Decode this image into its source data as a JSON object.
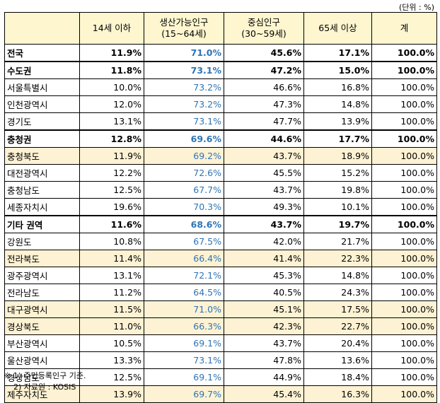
{
  "unit_label": "(단위 : %)",
  "columns": [
    "",
    "14세 이하",
    "생산가능인구\n(15~64세)",
    "중심인구\n(30~59세)",
    "65세 이상",
    "계"
  ],
  "rows": [
    {
      "name": "전국",
      "under14": "11.9%",
      "working": "71.0%",
      "core": "45.6%",
      "over65": "17.1%",
      "total": "100.0%",
      "bold": true,
      "highlight": false,
      "separator": false
    },
    {
      "name": "수도권",
      "under14": "11.8%",
      "working": "73.1%",
      "core": "47.2%",
      "over65": "15.0%",
      "total": "100.0%",
      "bold": true,
      "highlight": false,
      "separator": true
    },
    {
      "name": "서울특별시",
      "under14": "10.0%",
      "working": "73.2%",
      "core": "46.6%",
      "over65": "16.8%",
      "total": "100.0%",
      "bold": false,
      "highlight": false,
      "separator": false
    },
    {
      "name": "인천광역시",
      "under14": "12.0%",
      "working": "73.2%",
      "core": "47.3%",
      "over65": "14.8%",
      "total": "100.0%",
      "bold": false,
      "highlight": false,
      "separator": false
    },
    {
      "name": "경기도",
      "under14": "13.1%",
      "working": "73.1%",
      "core": "47.7%",
      "over65": "13.9%",
      "total": "100.0%",
      "bold": false,
      "highlight": false,
      "separator": false
    },
    {
      "name": "충청권",
      "under14": "12.8%",
      "working": "69.6%",
      "core": "44.6%",
      "over65": "17.7%",
      "total": "100.0%",
      "bold": true,
      "highlight": false,
      "separator": true
    },
    {
      "name": "충청북도",
      "under14": "11.9%",
      "working": "69.2%",
      "core": "43.7%",
      "over65": "18.9%",
      "total": "100.0%",
      "bold": false,
      "highlight": true,
      "separator": false
    },
    {
      "name": "대전광역시",
      "under14": "12.2%",
      "working": "72.6%",
      "core": "45.5%",
      "over65": "15.2%",
      "total": "100.0%",
      "bold": false,
      "highlight": false,
      "separator": false
    },
    {
      "name": "충청남도",
      "under14": "12.5%",
      "working": "67.7%",
      "core": "43.7%",
      "over65": "19.8%",
      "total": "100.0%",
      "bold": false,
      "highlight": false,
      "separator": false
    },
    {
      "name": "세종자치시",
      "under14": "19.6%",
      "working": "70.3%",
      "core": "49.3%",
      "over65": "10.1%",
      "total": "100.0%",
      "bold": false,
      "highlight": false,
      "separator": false
    },
    {
      "name": "기타 권역",
      "under14": "11.6%",
      "working": "68.6%",
      "core": "43.7%",
      "over65": "19.7%",
      "total": "100.0%",
      "bold": true,
      "highlight": false,
      "separator": true
    },
    {
      "name": "강원도",
      "under14": "10.8%",
      "working": "67.5%",
      "core": "42.0%",
      "over65": "21.7%",
      "total": "100.0%",
      "bold": false,
      "highlight": false,
      "separator": false
    },
    {
      "name": "전라북도",
      "under14": "11.4%",
      "working": "66.4%",
      "core": "41.4%",
      "over65": "22.3%",
      "total": "100.0%",
      "bold": false,
      "highlight": true,
      "separator": false
    },
    {
      "name": "광주광역시",
      "under14": "13.1%",
      "working": "72.1%",
      "core": "45.3%",
      "over65": "14.8%",
      "total": "100.0%",
      "bold": false,
      "highlight": false,
      "separator": false
    },
    {
      "name": "전라남도",
      "under14": "11.2%",
      "working": "64.5%",
      "core": "40.5%",
      "over65": "24.3%",
      "total": "100.0%",
      "bold": false,
      "highlight": false,
      "separator": false
    },
    {
      "name": "대구광역시",
      "under14": "11.5%",
      "working": "71.0%",
      "core": "45.1%",
      "over65": "17.5%",
      "total": "100.0%",
      "bold": false,
      "highlight": true,
      "separator": false
    },
    {
      "name": "경상북도",
      "under14": "11.0%",
      "working": "66.3%",
      "core": "42.3%",
      "over65": "22.7%",
      "total": "100.0%",
      "bold": false,
      "highlight": true,
      "separator": false
    },
    {
      "name": "부산광역시",
      "under14": "10.5%",
      "working": "69.1%",
      "core": "43.7%",
      "over65": "20.4%",
      "total": "100.0%",
      "bold": false,
      "highlight": false,
      "separator": false
    },
    {
      "name": "울산광역시",
      "under14": "13.3%",
      "working": "73.1%",
      "core": "47.8%",
      "over65": "13.6%",
      "total": "100.0%",
      "bold": false,
      "highlight": false,
      "separator": false
    },
    {
      "name": "경상남도",
      "under14": "12.5%",
      "working": "69.1%",
      "core": "44.9%",
      "over65": "18.4%",
      "total": "100.0%",
      "bold": false,
      "highlight": false,
      "separator": false
    },
    {
      "name": "제주자치도",
      "under14": "13.9%",
      "working": "69.7%",
      "core": "45.4%",
      "over65": "16.3%",
      "total": "100.0%",
      "bold": false,
      "highlight": true,
      "separator": false
    }
  ],
  "colors": {
    "header_bg": "#fdf6cf",
    "highlight_bg": "#fdf2d3",
    "working_text": "#2e74b5"
  },
  "notes": [
    "※ 1) 주민등록인구 기준.",
    "2) 자료원 : KOSIS"
  ]
}
